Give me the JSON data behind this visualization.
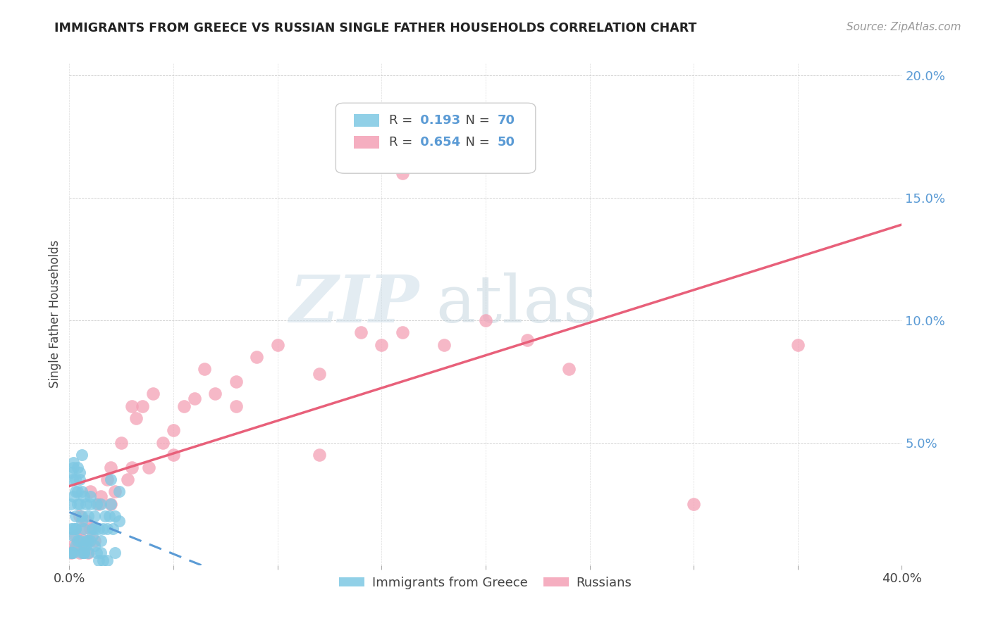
{
  "title": "IMMIGRANTS FROM GREECE VS RUSSIAN SINGLE FATHER HOUSEHOLDS CORRELATION CHART",
  "source": "Source: ZipAtlas.com",
  "ylabel": "Single Father Households",
  "xlim": [
    0.0,
    0.4
  ],
  "ylim": [
    0.0,
    0.205
  ],
  "xticks": [
    0.0,
    0.05,
    0.1,
    0.15,
    0.2,
    0.25,
    0.3,
    0.35,
    0.4
  ],
  "yticks": [
    0.0,
    0.05,
    0.1,
    0.15,
    0.2
  ],
  "greece_R": 0.193,
  "greece_N": 70,
  "russia_R": 0.654,
  "russia_N": 50,
  "greece_color": "#7ec8e3",
  "russia_color": "#f4a0b5",
  "greece_line_color": "#5b9bd5",
  "russia_line_color": "#e8607a",
  "watermark_zip": "ZIP",
  "watermark_atlas": "atlas",
  "greece_points_x": [
    0.0005,
    0.001,
    0.0015,
    0.002,
    0.002,
    0.002,
    0.003,
    0.003,
    0.003,
    0.004,
    0.004,
    0.004,
    0.005,
    0.005,
    0.005,
    0.006,
    0.006,
    0.006,
    0.007,
    0.007,
    0.007,
    0.008,
    0.008,
    0.009,
    0.009,
    0.01,
    0.01,
    0.011,
    0.012,
    0.013,
    0.014,
    0.015,
    0.015,
    0.016,
    0.017,
    0.018,
    0.019,
    0.02,
    0.021,
    0.022,
    0.024,
    0.001,
    0.001,
    0.002,
    0.002,
    0.003,
    0.003,
    0.004,
    0.005,
    0.006,
    0.006,
    0.007,
    0.008,
    0.009,
    0.01,
    0.011,
    0.012,
    0.013,
    0.014,
    0.015,
    0.016,
    0.018,
    0.02,
    0.022,
    0.024,
    0.0008,
    0.0015,
    0.003,
    0.007,
    0.012
  ],
  "greece_points_y": [
    0.025,
    0.038,
    0.035,
    0.04,
    0.042,
    0.028,
    0.03,
    0.02,
    0.015,
    0.04,
    0.025,
    0.01,
    0.038,
    0.025,
    0.01,
    0.03,
    0.018,
    0.005,
    0.028,
    0.015,
    0.005,
    0.025,
    0.01,
    0.02,
    0.005,
    0.025,
    0.01,
    0.015,
    0.02,
    0.025,
    0.015,
    0.025,
    0.01,
    0.015,
    0.02,
    0.015,
    0.02,
    0.025,
    0.015,
    0.02,
    0.03,
    0.005,
    0.015,
    0.005,
    0.012,
    0.008,
    0.015,
    0.03,
    0.035,
    0.045,
    0.02,
    0.008,
    0.008,
    0.01,
    0.028,
    0.012,
    0.015,
    0.005,
    0.002,
    0.005,
    0.002,
    0.002,
    0.035,
    0.005,
    0.018,
    0.005,
    0.015,
    0.035,
    0.005,
    0.008
  ],
  "russia_points_x": [
    0.001,
    0.002,
    0.003,
    0.004,
    0.005,
    0.006,
    0.007,
    0.008,
    0.009,
    0.01,
    0.012,
    0.014,
    0.015,
    0.018,
    0.02,
    0.022,
    0.025,
    0.028,
    0.03,
    0.032,
    0.035,
    0.038,
    0.04,
    0.045,
    0.05,
    0.055,
    0.06,
    0.065,
    0.07,
    0.08,
    0.09,
    0.1,
    0.12,
    0.14,
    0.15,
    0.16,
    0.18,
    0.2,
    0.22,
    0.24,
    0.005,
    0.01,
    0.02,
    0.03,
    0.05,
    0.08,
    0.12,
    0.16,
    0.3,
    0.35
  ],
  "russia_points_y": [
    0.005,
    0.008,
    0.012,
    0.008,
    0.005,
    0.015,
    0.01,
    0.018,
    0.005,
    0.015,
    0.01,
    0.025,
    0.028,
    0.035,
    0.025,
    0.03,
    0.05,
    0.035,
    0.04,
    0.06,
    0.065,
    0.04,
    0.07,
    0.05,
    0.055,
    0.065,
    0.068,
    0.08,
    0.07,
    0.075,
    0.085,
    0.09,
    0.078,
    0.095,
    0.09,
    0.095,
    0.09,
    0.1,
    0.092,
    0.08,
    0.02,
    0.03,
    0.04,
    0.065,
    0.045,
    0.065,
    0.045,
    0.16,
    0.025,
    0.09
  ]
}
